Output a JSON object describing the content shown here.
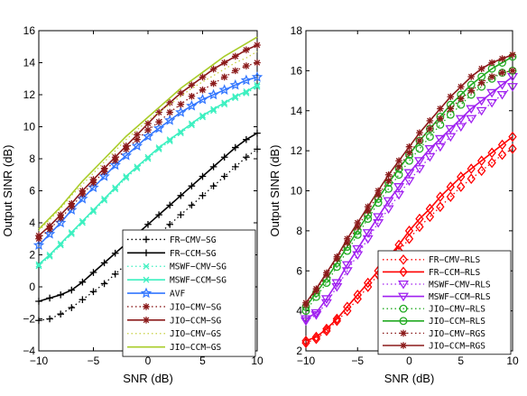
{
  "chart_data": [
    {
      "type": "line",
      "xlabel": "SNR (dB)",
      "ylabel": "Output SINR (dB)",
      "xlim": [
        -10,
        10
      ],
      "ylim": [
        -4,
        16
      ],
      "xticks": [
        "−10",
        "−5",
        "0",
        "5",
        "10"
      ],
      "yticks": [
        "−4",
        "−2",
        "0",
        "2",
        "4",
        "6",
        "8",
        "10",
        "12",
        "14",
        "16"
      ],
      "legend_position": "bottom-right",
      "x": [
        -10,
        -9,
        -8,
        -7,
        -6,
        -5,
        -4,
        -3,
        -2,
        -1,
        0,
        1,
        2,
        3,
        4,
        5,
        6,
        7,
        8,
        9,
        10
      ],
      "series": [
        {
          "name": "FR−CMV−SG",
          "color": "#000000",
          "style": "dotted",
          "marker": "plus",
          "values": [
            -2.1,
            -2.0,
            -1.7,
            -1.3,
            -0.8,
            -0.3,
            0.2,
            0.8,
            1.4,
            2.0,
            2.6,
            3.3,
            3.9,
            4.5,
            5.1,
            5.7,
            6.3,
            6.9,
            7.5,
            8.1,
            8.6
          ]
        },
        {
          "name": "FR−CCM−SG",
          "color": "#000000",
          "style": "solid",
          "marker": "plus",
          "values": [
            -0.9,
            -0.7,
            -0.5,
            -0.2,
            0.3,
            0.9,
            1.5,
            2.1,
            2.7,
            3.3,
            3.9,
            4.5,
            5.1,
            5.7,
            6.3,
            6.9,
            7.5,
            8.1,
            8.7,
            9.2,
            9.6
          ]
        },
        {
          "name": "MSWF−CMV−SG",
          "color": "#3cf0c0",
          "style": "dotted",
          "marker": "x",
          "values": [
            1.3,
            1.9,
            2.6,
            3.3,
            4.0,
            4.7,
            5.4,
            6.1,
            6.8,
            7.4,
            8.0,
            8.6,
            9.1,
            9.6,
            10.1,
            10.6,
            11.0,
            11.4,
            11.8,
            12.1,
            12.5
          ]
        },
        {
          "name": "MSWF−CCM−SG",
          "color": "#3cf0c0",
          "style": "solid",
          "marker": "x",
          "values": [
            1.4,
            2.0,
            2.7,
            3.4,
            4.1,
            4.8,
            5.5,
            6.2,
            6.9,
            7.5,
            8.1,
            8.7,
            9.2,
            9.7,
            10.2,
            10.7,
            11.1,
            11.5,
            11.9,
            12.2,
            12.6
          ]
        },
        {
          "name": "AVF",
          "color": "#3377ff",
          "style": "solid",
          "marker": "star",
          "values": [
            2.6,
            3.3,
            4.0,
            4.8,
            5.5,
            6.2,
            6.9,
            7.6,
            8.2,
            8.8,
            9.4,
            9.9,
            10.4,
            10.9,
            11.3,
            11.7,
            12.0,
            12.3,
            12.6,
            12.9,
            13.1
          ]
        },
        {
          "name": "JIO−CMV−SG",
          "color": "#8b1a1a",
          "style": "dotted",
          "marker": "asterisk",
          "values": [
            3.0,
            3.6,
            4.3,
            5.0,
            5.8,
            6.5,
            7.2,
            7.9,
            8.6,
            9.2,
            9.8,
            10.3,
            10.9,
            11.4,
            11.9,
            12.3,
            12.7,
            13.1,
            13.5,
            13.8,
            14.0
          ]
        },
        {
          "name": "JIO−CCM−SG",
          "color": "#8b1a1a",
          "style": "solid",
          "marker": "asterisk",
          "values": [
            3.2,
            3.8,
            4.5,
            5.2,
            6.0,
            6.7,
            7.4,
            8.1,
            8.8,
            9.5,
            10.2,
            10.9,
            11.5,
            12.1,
            12.6,
            13.1,
            13.6,
            14.0,
            14.4,
            14.8,
            15.1
          ]
        },
        {
          "name": "JIO−CMV−GS",
          "color": "#c8d040",
          "style": "dotted",
          "marker": "none",
          "values": [
            3.5,
            4.2,
            4.9,
            5.7,
            6.4,
            7.1,
            7.8,
            8.5,
            9.2,
            9.8,
            10.4,
            10.9,
            11.4,
            11.9,
            12.4,
            12.8,
            13.2,
            13.6,
            14.0,
            14.3,
            14.7
          ]
        },
        {
          "name": "JIO−CCM−GS",
          "color": "#a8cc28",
          "style": "solid",
          "marker": "none",
          "values": [
            3.6,
            4.3,
            5.0,
            5.8,
            6.6,
            7.3,
            8.0,
            8.7,
            9.4,
            10.0,
            10.6,
            11.2,
            11.8,
            12.4,
            12.9,
            13.4,
            13.9,
            14.4,
            14.8,
            15.2,
            15.6
          ]
        }
      ]
    },
    {
      "type": "line",
      "xlabel": "SNR (dB)",
      "ylabel": "Output SINR (dB)",
      "xlim": [
        -10,
        10
      ],
      "ylim": [
        2,
        18
      ],
      "xticks": [
        "−10",
        "−5",
        "0",
        "5",
        "10"
      ],
      "yticks": [
        "2",
        "4",
        "6",
        "8",
        "10",
        "12",
        "14",
        "16",
        "18"
      ],
      "legend_position": "bottom-right",
      "x": [
        -10,
        -9,
        -8,
        -7,
        -6,
        -5,
        -4,
        -3,
        -2,
        -1,
        0,
        1,
        2,
        3,
        4,
        5,
        6,
        7,
        8,
        9,
        10
      ],
      "series": [
        {
          "name": "FR−CMV−RLS",
          "color": "#ff0000",
          "style": "dotted",
          "marker": "diamond",
          "values": [
            2.4,
            2.6,
            3.0,
            3.5,
            4.0,
            4.6,
            5.2,
            5.8,
            6.4,
            7.0,
            7.6,
            8.2,
            8.7,
            9.2,
            9.7,
            10.2,
            10.6,
            11.0,
            11.4,
            11.8,
            12.1
          ]
        },
        {
          "name": "FR−CCM−RLS",
          "color": "#ff0000",
          "style": "solid",
          "marker": "diamond",
          "values": [
            2.5,
            2.7,
            3.1,
            3.6,
            4.2,
            4.8,
            5.4,
            6.0,
            6.7,
            7.3,
            8.0,
            8.6,
            9.1,
            9.7,
            10.2,
            10.7,
            11.1,
            11.5,
            11.9,
            12.3,
            12.7
          ]
        },
        {
          "name": "MSWF−CMV−RLS",
          "color": "#a020f0",
          "style": "dotted",
          "marker": "triangle-down",
          "values": [
            3.5,
            3.8,
            4.4,
            5.2,
            6.0,
            6.8,
            7.6,
            8.4,
            9.1,
            9.8,
            10.5,
            11.1,
            11.7,
            12.2,
            12.7,
            13.2,
            13.6,
            14.0,
            14.4,
            14.8,
            15.2
          ]
        },
        {
          "name": "MSWF−CCM−RLS",
          "color": "#a020f0",
          "style": "solid",
          "marker": "triangle-down",
          "values": [
            3.6,
            3.9,
            4.6,
            5.4,
            6.3,
            7.1,
            7.9,
            8.7,
            9.5,
            10.2,
            10.9,
            11.5,
            12.1,
            12.6,
            13.1,
            13.6,
            14.1,
            14.5,
            14.9,
            15.3,
            15.7
          ]
        },
        {
          "name": "JIO−CMV−RLS",
          "color": "#22aa22",
          "style": "dotted",
          "marker": "circle",
          "values": [
            4.0,
            4.7,
            5.4,
            6.2,
            7.0,
            7.8,
            8.6,
            9.4,
            10.1,
            10.8,
            11.5,
            12.1,
            12.7,
            13.3,
            13.8,
            14.3,
            14.8,
            15.2,
            15.6,
            15.9,
            16.0
          ]
        },
        {
          "name": "JIO−CCM−RLS",
          "color": "#22aa22",
          "style": "solid",
          "marker": "circle",
          "values": [
            4.2,
            4.9,
            5.6,
            6.4,
            7.2,
            8.0,
            8.8,
            9.6,
            10.4,
            11.1,
            11.8,
            12.5,
            13.1,
            13.7,
            14.3,
            14.8,
            15.3,
            15.7,
            16.1,
            16.4,
            16.7
          ]
        },
        {
          "name": "JIO−CMV−RGS",
          "color": "#8b1a1a",
          "style": "dotted",
          "marker": "asterisk",
          "values": [
            4.3,
            5.0,
            5.8,
            6.6,
            7.4,
            8.2,
            9.0,
            9.8,
            10.5,
            11.2,
            11.9,
            12.5,
            13.1,
            13.6,
            14.1,
            14.6,
            15.0,
            15.4,
            15.7,
            15.9,
            16.0
          ]
        },
        {
          "name": "JIO−CCM−RGS",
          "color": "#8b1a1a",
          "style": "solid",
          "marker": "asterisk",
          "values": [
            4.4,
            5.1,
            5.9,
            6.7,
            7.6,
            8.4,
            9.2,
            10.0,
            10.8,
            11.5,
            12.2,
            12.9,
            13.5,
            14.1,
            14.7,
            15.2,
            15.7,
            16.1,
            16.4,
            16.6,
            16.8
          ]
        }
      ]
    }
  ]
}
